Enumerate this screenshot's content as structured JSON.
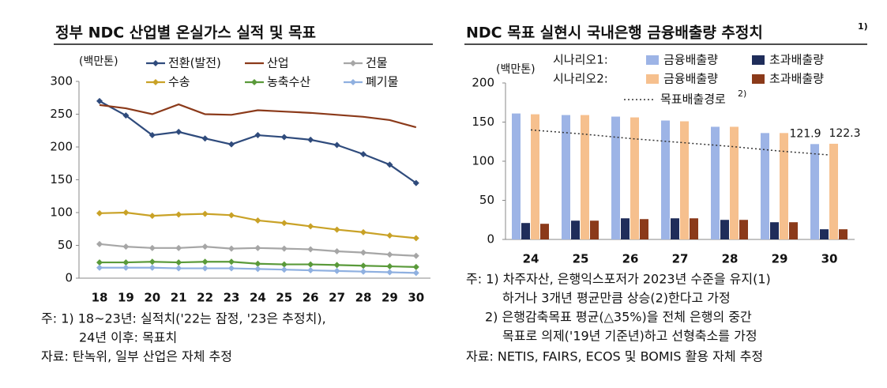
{
  "chart_data": [
    {
      "type": "line",
      "title": "정부 NDC 산업별 온실가스 실적 및 목표",
      "y_label": "(백만톤)",
      "categories": [
        "18",
        "19",
        "20",
        "21",
        "22",
        "23",
        "24",
        "25",
        "26",
        "27",
        "28",
        "29",
        "30"
      ],
      "ylim": [
        0,
        300
      ],
      "yticks": [
        0,
        50,
        100,
        150,
        200,
        250,
        300
      ],
      "grid": false,
      "legend_columns": 3,
      "series": [
        {
          "name": "전환(발전)",
          "color": "#2f4b7c",
          "marker": "diamond",
          "values": [
            270,
            248,
            218,
            223,
            213,
            204,
            218,
            215,
            211,
            203,
            189,
            173,
            145
          ]
        },
        {
          "name": "산업",
          "color": "#8b3a1a",
          "marker": "dash",
          "values": [
            264,
            259,
            250,
            265,
            250,
            249,
            256,
            254,
            252,
            249,
            246,
            241,
            230
          ]
        },
        {
          "name": "건물",
          "color": "#a6a6a6",
          "marker": "diamond",
          "values": [
            52,
            48,
            46,
            46,
            48,
            45,
            46,
            45,
            44,
            41,
            39,
            36,
            34
          ]
        },
        {
          "name": "수송",
          "color": "#c9a227",
          "marker": "diamond",
          "values": [
            99,
            100,
            95,
            97,
            98,
            96,
            88,
            84,
            79,
            74,
            70,
            65,
            61
          ]
        },
        {
          "name": "농축수산",
          "color": "#5a9a3a",
          "marker": "diamond",
          "values": [
            24,
            24,
            25,
            24,
            25,
            25,
            22,
            21,
            21,
            20,
            19,
            18,
            17
          ]
        },
        {
          "name": "폐기물",
          "color": "#8fb0e0",
          "marker": "diamond",
          "values": [
            16,
            16,
            16,
            15,
            15,
            15,
            14,
            13,
            12,
            11,
            10,
            9,
            8
          ]
        }
      ],
      "notes": [
        "주: 1) 18~23년: 실적치('22는 잠정, '23은 추정치),",
        "24년 이후: 목표치",
        "자료: 탄녹위, 일부 산업은 자체 추정"
      ]
    },
    {
      "type": "bar",
      "title": "NDC 목표 실현시 국내은행 금융배출량 추정치",
      "title_note": "1)",
      "y_label": "(백만톤)",
      "categories": [
        "24",
        "25",
        "26",
        "27",
        "28",
        "29",
        "30"
      ],
      "ylim": [
        0,
        200
      ],
      "yticks": [
        0,
        50,
        100,
        150,
        200
      ],
      "grid": false,
      "scenarios": [
        "시나리오1:",
        "시나리오2:"
      ],
      "series": [
        {
          "name": "금융배출량",
          "color": "#9db4e6",
          "values": [
            161,
            159,
            157,
            152,
            144,
            136,
            121.9
          ],
          "show_last_value": true
        },
        {
          "name": "초과배출량",
          "color": "#1f2d5a",
          "values": [
            21,
            24,
            27,
            27,
            25,
            22,
            13
          ]
        },
        {
          "name": "금융배출량",
          "color": "#f6c08e",
          "values": [
            160,
            159,
            156,
            151,
            144,
            136,
            122.3
          ],
          "show_last_value": true
        },
        {
          "name": "초과배출량",
          "color": "#8b3a1a",
          "values": [
            20,
            24,
            26,
            27,
            25,
            22,
            13
          ]
        },
        {
          "name": "목표배출경로",
          "name_note": "2)",
          "type": "line",
          "style": "dotted",
          "color": "#333333",
          "values": [
            140,
            135,
            129,
            124,
            119,
            113,
            108
          ]
        }
      ],
      "notes": [
        "주: 1) 차주자산, 은행익스포저가 2023년 수준을 유지(1)",
        "하거나 3개년 평균만큼 상승(2)한다고 가정",
        "2) 은행감축목표 평균(△35%)을 전체 은행의 중간",
        "목표로 의제('19년 기준년)하고 선형축소를 가정",
        "자료: NETIS, FAIRS, ECOS 및 BOMIS 활용 자체 추정"
      ]
    }
  ]
}
